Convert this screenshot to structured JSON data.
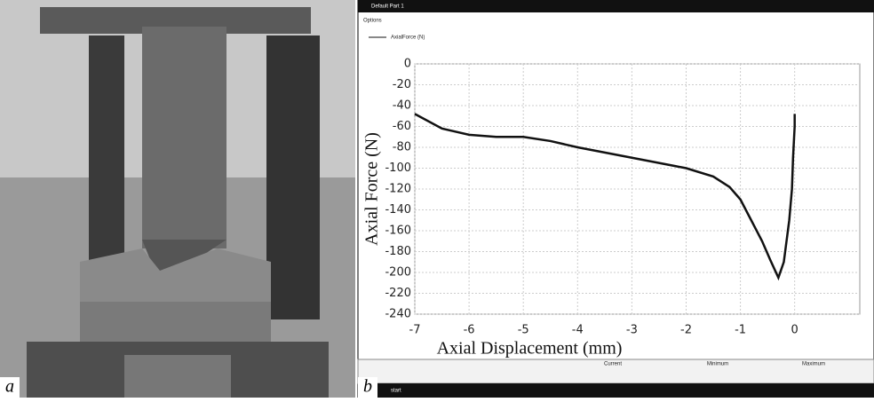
{
  "panel_labels": [
    "a",
    "b"
  ],
  "window": {
    "title": "Default Part 1",
    "options": "Options",
    "table_headers": [
      "Current",
      "Minimum",
      "Maximum"
    ],
    "start": "start"
  },
  "chart_data": {
    "type": "line",
    "x_label": "Axial Displacement (mm)",
    "y_label": "Axial Force (N)",
    "x": [
      -7,
      -6.5,
      -6,
      -5.5,
      -5,
      -4.5,
      -4,
      -3.5,
      -3,
      -2.5,
      -2,
      -1.5,
      -1.2,
      -1,
      -0.8,
      -0.6,
      -0.45,
      -0.3,
      -0.2,
      -0.1,
      -0.05,
      -0.03,
      0,
      0
    ],
    "series": [
      {
        "name": "AxialForce (N)",
        "color": "#111111",
        "values": [
          -48,
          -62,
          -68,
          -70,
          -70,
          -74,
          -80,
          -85,
          -90,
          -95,
          -100,
          -108,
          -118,
          -130,
          -150,
          -170,
          -188,
          -205,
          -190,
          -150,
          -120,
          -90,
          -60,
          -48
        ]
      }
    ],
    "xlim": [
      -7,
      1.2
    ],
    "xticks": [
      -7,
      -6,
      -5,
      -4,
      -3,
      -2,
      -1,
      0
    ],
    "ylim": [
      -240,
      0
    ],
    "yticks": [
      0,
      -20,
      -40,
      -60,
      -80,
      -100,
      -120,
      -140,
      -160,
      -180,
      -200,
      -220,
      -240
    ],
    "grid": true
  }
}
